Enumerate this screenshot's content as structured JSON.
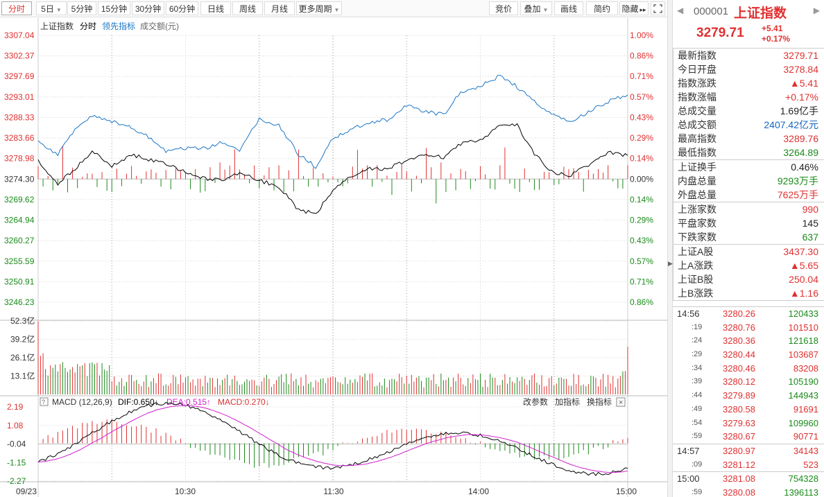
{
  "toolbar": {
    "tabs": [
      {
        "label": "分时",
        "active": true
      },
      {
        "label": "5日",
        "dropdown": true
      },
      {
        "label": "5分钟"
      },
      {
        "label": "15分钟"
      },
      {
        "label": "30分钟"
      },
      {
        "label": "60分钟"
      },
      {
        "label": "日线"
      },
      {
        "label": "周线"
      },
      {
        "label": "月线"
      },
      {
        "label": "更多周期",
        "dropdown": true
      }
    ],
    "right": [
      {
        "label": "竞价"
      },
      {
        "label": "叠加",
        "dropdown": true
      },
      {
        "label": "画线"
      },
      {
        "label": "简约"
      },
      {
        "label": "隐藏",
        "arrows": "▸▸"
      }
    ],
    "fullscreen_icon": "expand-icon"
  },
  "chart_legend": {
    "name": "上证指数",
    "mode": "分时",
    "lead": "领先指标",
    "volume": "成交额(元)"
  },
  "colors": {
    "up": "#e03030",
    "down": "#1a8a1a",
    "price": "#000000",
    "lead": "#1b75c4",
    "dea": "#d020d0",
    "grid": "#e4e4e4"
  },
  "chart_data": [
    {
      "type": "line",
      "title": "上证指数 分时",
      "y_labels_left": [
        "3307.04",
        "3302.37",
        "3297.69",
        "3293.01",
        "3288.33",
        "3283.66",
        "3278.98",
        "3274.30",
        "3269.62",
        "3264.94",
        "3260.27",
        "3255.59",
        "3250.91",
        "3246.23"
      ],
      "y_labels_right": [
        "1.00%",
        "0.86%",
        "0.71%",
        "0.57%",
        "0.43%",
        "0.29%",
        "0.14%",
        "0.00%",
        "0.14%",
        "0.29%",
        "0.43%",
        "0.57%",
        "0.71%",
        "0.86%"
      ],
      "ylim": [
        3246.23,
        3307.04
      ],
      "prev_close": 3274.3,
      "x_labels": [
        "09/23",
        "10:30",
        "11:30",
        "14:00",
        "15:00"
      ],
      "series": [
        {
          "name": "上证指数",
          "x": [
            0,
            8,
            15,
            22,
            30,
            38,
            45,
            52,
            60,
            68,
            75,
            82,
            90,
            98,
            106,
            113,
            120,
            127,
            135,
            142,
            150,
            157,
            165,
            172,
            180,
            188,
            195,
            202,
            210,
            217,
            225,
            232,
            240
          ],
          "values": [
            3278.5,
            3273.2,
            3276.6,
            3280.8,
            3277.2,
            3279.9,
            3278.7,
            3277.6,
            3276.0,
            3274.4,
            3273.9,
            3275.6,
            3274.0,
            3272.6,
            3267.1,
            3266.5,
            3271.5,
            3274.9,
            3276.6,
            3276.7,
            3278.4,
            3279.7,
            3279.3,
            3282.3,
            3283.1,
            3286.7,
            3286.5,
            3279.9,
            3275.6,
            3275.2,
            3277.8,
            3280.5,
            3279.7
          ]
        },
        {
          "name": "领先指标",
          "x": [
            0,
            8,
            15,
            22,
            30,
            38,
            45,
            52,
            60,
            68,
            75,
            82,
            90,
            98,
            106,
            113,
            120,
            127,
            135,
            142,
            150,
            157,
            165,
            172,
            180,
            188,
            195,
            202,
            210,
            217,
            225,
            232,
            240
          ],
          "values": [
            3282.9,
            3279.9,
            3285.6,
            3288.8,
            3287.4,
            3286.1,
            3283.9,
            3280.7,
            3281.3,
            3281.2,
            3282.8,
            3280.9,
            3287.8,
            3286.6,
            3279.9,
            3277.1,
            3283.6,
            3285.5,
            3287.3,
            3287.8,
            3291.1,
            3289.7,
            3289.0,
            3294.0,
            3295.5,
            3297.8,
            3295.3,
            3292.0,
            3288.8,
            3287.4,
            3290.0,
            3291.9,
            3293.6
          ]
        }
      ]
    },
    {
      "type": "bar",
      "title": "成交额(元)",
      "y_labels": [
        "52.3亿",
        "39.2亿",
        "26.1亿",
        "13.1亿"
      ],
      "ylim": [
        0,
        52.3
      ],
      "unit": "亿"
    },
    {
      "type": "line",
      "title": "MACD (12,26,9)",
      "legend": {
        "name": "MACD (12,26,9)",
        "dif": "DIF:0.650",
        "dea": "DEA:0.515",
        "macd": "MACD:0.270"
      },
      "actions": [
        "改参数",
        "加指标",
        "换指标"
      ],
      "y_labels": [
        "2.19",
        "1.08",
        "-0.04",
        "-1.15",
        "-2.27"
      ],
      "ylim": [
        -2.27,
        2.19
      ]
    }
  ],
  "panel": {
    "code": "000001",
    "name": "上证指数",
    "price": "3279.71",
    "change": "+5.41",
    "change_pct": "+0.17%",
    "stats": [
      [
        {
          "k": "最新指数",
          "v": "3279.71",
          "c": "red"
        },
        {
          "k": "今日开盘",
          "v": "3278.84",
          "c": "red"
        },
        {
          "k": "指数涨跌",
          "v": "▲5.41",
          "c": "red"
        },
        {
          "k": "指数涨幅",
          "v": "+0.17%",
          "c": "red"
        },
        {
          "k": "总成交量",
          "v": "1.69亿手",
          "c": "dark"
        },
        {
          "k": "总成交额",
          "v": "2407.42亿元",
          "c": "blue"
        },
        {
          "k": "最高指数",
          "v": "3289.76",
          "c": "red"
        },
        {
          "k": "最低指数",
          "v": "3264.89",
          "c": "green"
        }
      ],
      [
        {
          "k": "上证换手",
          "v": "0.46%",
          "c": "dark"
        },
        {
          "k": "内盘总量",
          "v": "9293万手",
          "c": "green"
        },
        {
          "k": "外盘总量",
          "v": "7625万手",
          "c": "red"
        }
      ],
      [
        {
          "k": "上涨家数",
          "v": "990",
          "c": "red"
        },
        {
          "k": "平盘家数",
          "v": "145",
          "c": "dark"
        },
        {
          "k": "下跌家数",
          "v": "637",
          "c": "green"
        }
      ],
      [
        {
          "k": "上证A股",
          "v": "3437.30",
          "c": "red"
        },
        {
          "k": "上A涨跌",
          "v": "▲5.65",
          "c": "red"
        },
        {
          "k": "上证B股",
          "v": "250.04",
          "c": "red"
        },
        {
          "k": "上B涨跌",
          "v": "▲1.16",
          "c": "red"
        }
      ]
    ],
    "ticks": [
      [
        {
          "t": "14:56",
          "p": "3280.26",
          "v": "120433",
          "c": "green"
        },
        {
          "t": ":19",
          "p": "3280.76",
          "v": "101510",
          "c": "red"
        },
        {
          "t": ":24",
          "p": "3280.36",
          "v": "121618",
          "c": "green"
        },
        {
          "t": ":29",
          "p": "3280.44",
          "v": "103687",
          "c": "red"
        },
        {
          "t": ":34",
          "p": "3280.46",
          "v": "83208",
          "c": "red"
        },
        {
          "t": ":39",
          "p": "3280.12",
          "v": "105190",
          "c": "green"
        },
        {
          "t": ":44",
          "p": "3279.89",
          "v": "144943",
          "c": "green"
        },
        {
          "t": ":49",
          "p": "3280.58",
          "v": "91691",
          "c": "red"
        },
        {
          "t": ":54",
          "p": "3279.63",
          "v": "109960",
          "c": "green"
        },
        {
          "t": ":59",
          "p": "3280.67",
          "v": "90771",
          "c": "red"
        }
      ],
      [
        {
          "t": "14:57",
          "p": "3280.97",
          "v": "34143",
          "c": "red"
        },
        {
          "t": ":09",
          "p": "3281.12",
          "v": "523",
          "c": "red"
        }
      ],
      [
        {
          "t": "15:00",
          "p": "3281.08",
          "v": "754328",
          "c": "green"
        },
        {
          "t": ":59",
          "p": "3280.08",
          "v": "1396113",
          "c": "green"
        }
      ]
    ]
  }
}
